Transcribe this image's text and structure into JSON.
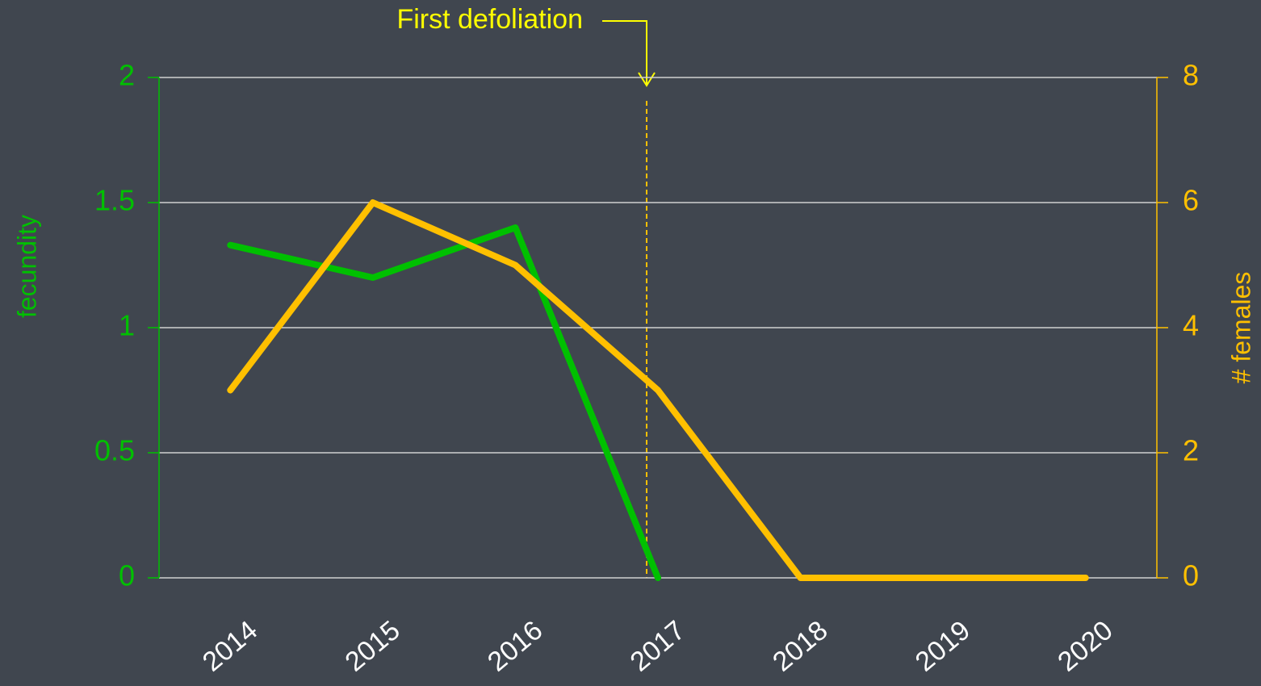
{
  "chart_data": {
    "type": "line",
    "annotation": "First defoliation",
    "ylabel": "fecundity",
    "y2label": "# females",
    "categories": [
      "2014",
      "2015",
      "2016",
      "2017",
      "2018",
      "2019",
      "2020"
    ],
    "series": [
      {
        "name": "fecundity",
        "color": "#00c000",
        "values": [
          1.33,
          1.2,
          1.4,
          0,
          null,
          null,
          null
        ]
      },
      {
        "name": "# females",
        "color": "#ffc000",
        "axis": "y2",
        "values": [
          3,
          6,
          5,
          3,
          0,
          0,
          0
        ]
      }
    ],
    "ylim": [
      0,
      2
    ],
    "yticks": [
      0,
      0.5,
      1,
      1.5,
      2
    ],
    "y2lim": [
      0,
      8
    ],
    "y2ticks": [
      0,
      2,
      4,
      6,
      8
    ],
    "grid": true
  }
}
